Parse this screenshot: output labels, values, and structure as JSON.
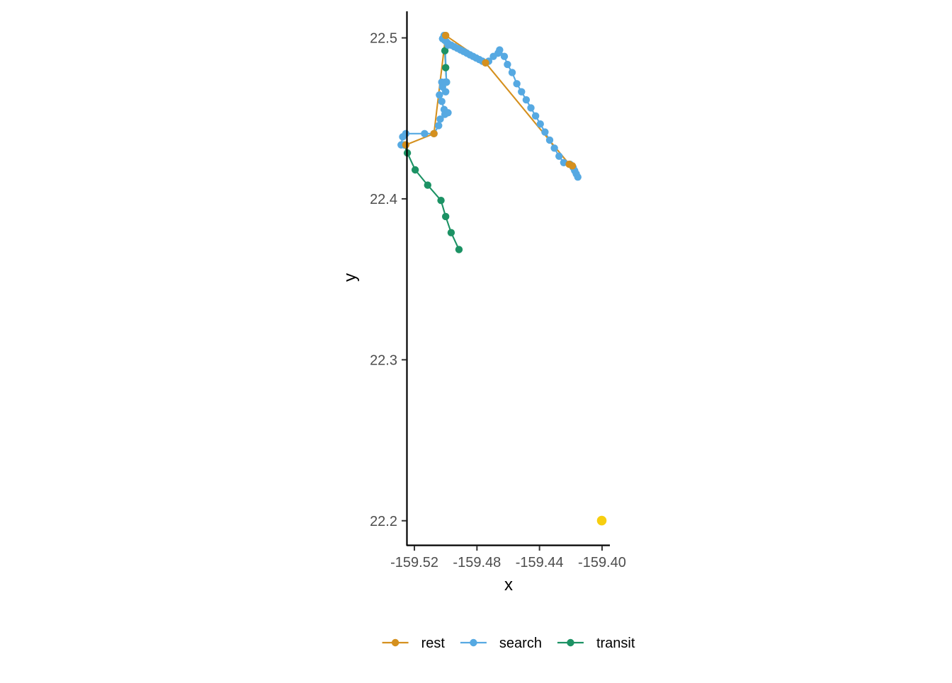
{
  "chart_data": {
    "type": "scatter",
    "title": "",
    "xlabel": "x",
    "ylabel": "y",
    "xlim": [
      -159.525,
      -159.395
    ],
    "ylim": [
      22.1845,
      22.5165
    ],
    "x_ticks": [
      -159.52,
      -159.48,
      -159.44,
      -159.4
    ],
    "x_tick_labels": [
      "-159.52",
      "-159.48",
      "-159.44",
      "-159.40"
    ],
    "y_ticks": [
      22.2,
      22.3,
      22.4,
      22.5
    ],
    "y_tick_labels": [
      "22.2",
      "22.3",
      "22.4",
      "22.5"
    ],
    "grid": false,
    "legend_position": "bottom",
    "colors": {
      "rest": "#d5901e",
      "search": "#56a9e2",
      "transit": "#1c9264",
      "extra_point": "#f7ce0f"
    },
    "legend": [
      {
        "key": "rest",
        "label": "rest"
      },
      {
        "key": "search",
        "label": "search"
      },
      {
        "key": "transit",
        "label": "transit"
      }
    ],
    "series": [
      {
        "key": "transit",
        "points": [
          [
            -159.4915,
            22.3685
          ],
          [
            -159.4965,
            22.379
          ],
          [
            -159.5,
            22.389
          ],
          [
            -159.503,
            22.399
          ],
          [
            -159.5115,
            22.4085
          ],
          [
            -159.5195,
            22.418
          ],
          [
            -159.5245,
            22.4285
          ],
          [
            -159.5265,
            22.4335
          ]
        ]
      },
      {
        "key": "transit",
        "points": [
          [
            -159.4995,
            22.4725
          ],
          [
            -159.5,
            22.4815
          ],
          [
            -159.5005,
            22.492
          ],
          [
            -159.5005,
            22.4985
          ]
        ]
      },
      {
        "key": "search",
        "points": [
          [
            -159.5265,
            22.4335
          ],
          [
            -159.5285,
            22.4335
          ],
          [
            -159.5275,
            22.4385
          ],
          [
            -159.5255,
            22.4405
          ],
          [
            -159.5135,
            22.4405
          ],
          [
            -159.5075,
            22.4405
          ],
          [
            -159.5045,
            22.4455
          ],
          [
            -159.5035,
            22.4495
          ],
          [
            -159.5005,
            22.4525
          ],
          [
            -159.4985,
            22.4535
          ],
          [
            -159.501,
            22.4555
          ],
          [
            -159.5025,
            22.4605
          ],
          [
            -159.504,
            22.4645
          ],
          [
            -159.5,
            22.4665
          ],
          [
            -159.502,
            22.4695
          ],
          [
            -159.5025,
            22.4725
          ],
          [
            -159.5005,
            22.4725
          ],
          [
            -159.4995,
            22.4725
          ],
          [
            -159.5005,
            22.4985
          ],
          [
            -159.4985,
            22.4965
          ],
          [
            -159.4965,
            22.4955
          ],
          [
            -159.4945,
            22.4945
          ],
          [
            -159.4925,
            22.4935
          ],
          [
            -159.4905,
            22.4925
          ],
          [
            -159.4885,
            22.4915
          ],
          [
            -159.4865,
            22.4905
          ],
          [
            -159.4845,
            22.4895
          ],
          [
            -159.4825,
            22.4885
          ],
          [
            -159.4805,
            22.4875
          ],
          [
            -159.4785,
            22.4865
          ],
          [
            -159.4765,
            22.4855
          ],
          [
            -159.4745,
            22.4845
          ],
          [
            -159.4725,
            22.4855
          ],
          [
            -159.4695,
            22.4885
          ],
          [
            -159.4665,
            22.4905
          ],
          [
            -159.4655,
            22.4925
          ],
          [
            -159.4625,
            22.4885
          ],
          [
            -159.4605,
            22.4835
          ],
          [
            -159.4575,
            22.4785
          ],
          [
            -159.4545,
            22.4715
          ],
          [
            -159.4515,
            22.4665
          ],
          [
            -159.4485,
            22.4615
          ],
          [
            -159.4455,
            22.4565
          ],
          [
            -159.4425,
            22.4515
          ],
          [
            -159.4395,
            22.4465
          ],
          [
            -159.4365,
            22.4415
          ],
          [
            -159.4335,
            22.4365
          ],
          [
            -159.4305,
            22.4315
          ],
          [
            -159.4275,
            22.4265
          ],
          [
            -159.4245,
            22.4225
          ],
          [
            -159.4205,
            22.4215
          ],
          [
            -159.4185,
            22.4195
          ],
          [
            -159.4175,
            22.4175
          ],
          [
            -159.4165,
            22.4155
          ],
          [
            -159.4155,
            22.4135
          ]
        ]
      },
      {
        "key": "search",
        "points": [
          [
            -159.502,
            22.4995
          ],
          [
            -159.501,
            22.5015
          ],
          [
            -159.4995,
            22.4975
          ],
          [
            -159.4985,
            22.4955
          ]
        ]
      },
      {
        "key": "rest",
        "points": [
          [
            -159.5255,
            22.4335
          ],
          [
            -159.5075,
            22.4405
          ],
          [
            -159.5,
            22.5015
          ],
          [
            -159.4745,
            22.4845
          ],
          [
            -159.421,
            22.4215
          ],
          [
            -159.419,
            22.4205
          ]
        ]
      },
      {
        "key": "extra_point",
        "points": [
          [
            -159.4002,
            22.2001
          ]
        ]
      }
    ]
  }
}
